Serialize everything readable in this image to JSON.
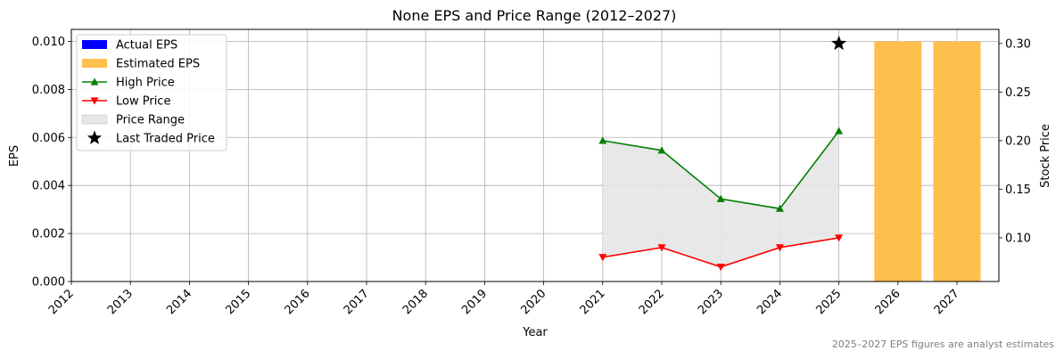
{
  "chart_data": {
    "type": "bar+line",
    "title": "None EPS and Price Range (2012–2027)",
    "xlabel": "Year",
    "ylabel_left": "EPS",
    "ylabel_right": "Stock Price",
    "years": [
      "2012",
      "2013",
      "2014",
      "2015",
      "2016",
      "2017",
      "2018",
      "2019",
      "2020",
      "2021",
      "2022",
      "2023",
      "2024",
      "2025",
      "2026",
      "2027"
    ],
    "ylim_left": [
      0,
      0.0105
    ],
    "ylim_right": [
      0.055,
      0.3145
    ],
    "yticks_left": [
      "0.000",
      "0.002",
      "0.004",
      "0.006",
      "0.008",
      "0.010"
    ],
    "yticks_right": [
      "0.10",
      "0.15",
      "0.20",
      "0.25",
      "0.30"
    ],
    "grid": true,
    "legend_position": "top-left",
    "actual_eps": {
      "name": "Actual EPS",
      "color": "#0000ff",
      "points": []
    },
    "estimated_eps": {
      "name": "Estimated EPS",
      "color": "#ffbf4d",
      "points": [
        {
          "year": "2026",
          "value": 0.01
        },
        {
          "year": "2027",
          "value": 0.01
        }
      ]
    },
    "high_price": {
      "name": "High Price",
      "color": "#008000",
      "points": [
        {
          "year": "2021",
          "value": 0.2
        },
        {
          "year": "2022",
          "value": 0.19
        },
        {
          "year": "2023",
          "value": 0.14
        },
        {
          "year": "2024",
          "value": 0.13
        },
        {
          "year": "2025",
          "value": 0.21
        }
      ]
    },
    "low_price": {
      "name": "Low Price",
      "color": "#ff0000",
      "points": [
        {
          "year": "2021",
          "value": 0.08
        },
        {
          "year": "2022",
          "value": 0.09
        },
        {
          "year": "2023",
          "value": 0.07
        },
        {
          "year": "2024",
          "value": 0.09
        },
        {
          "year": "2025",
          "value": 0.1
        }
      ]
    },
    "price_range": {
      "name": "Price Range",
      "color": "#e6e6e6"
    },
    "last_traded": {
      "name": "Last Traded Price",
      "year": "2025",
      "value": 0.3,
      "color": "#000000"
    },
    "footnote": "2025–2027 EPS figures are analyst estimates"
  }
}
